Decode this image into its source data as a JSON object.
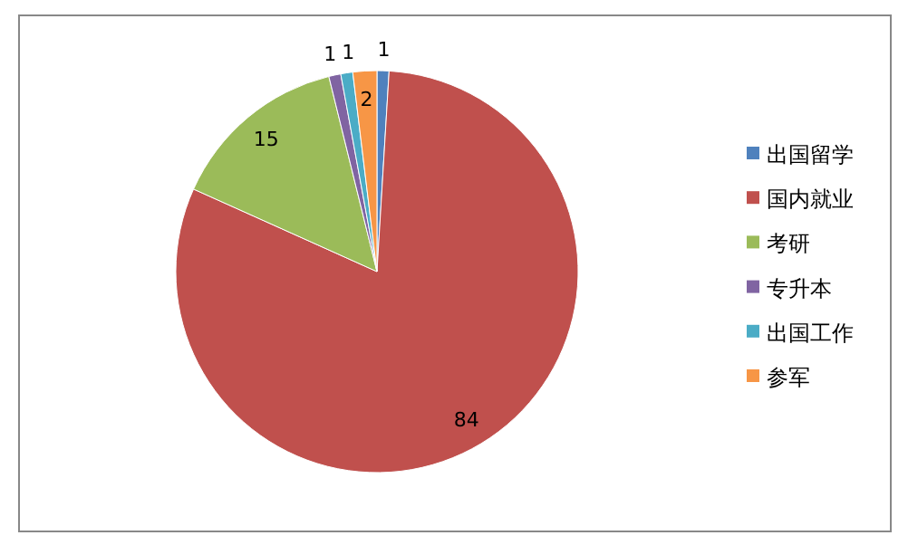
{
  "chart_data": {
    "type": "pie",
    "categories": [
      "出国留学",
      "国内就业",
      "考研",
      "专升本",
      "出国工作",
      "参军"
    ],
    "values": [
      1,
      84,
      15,
      1,
      1,
      2
    ],
    "colors": [
      "#4f81bd",
      "#c0504d",
      "#9bbb59",
      "#8064a2",
      "#4bacc6",
      "#f79646"
    ],
    "data_labels": true,
    "legend": "right"
  }
}
